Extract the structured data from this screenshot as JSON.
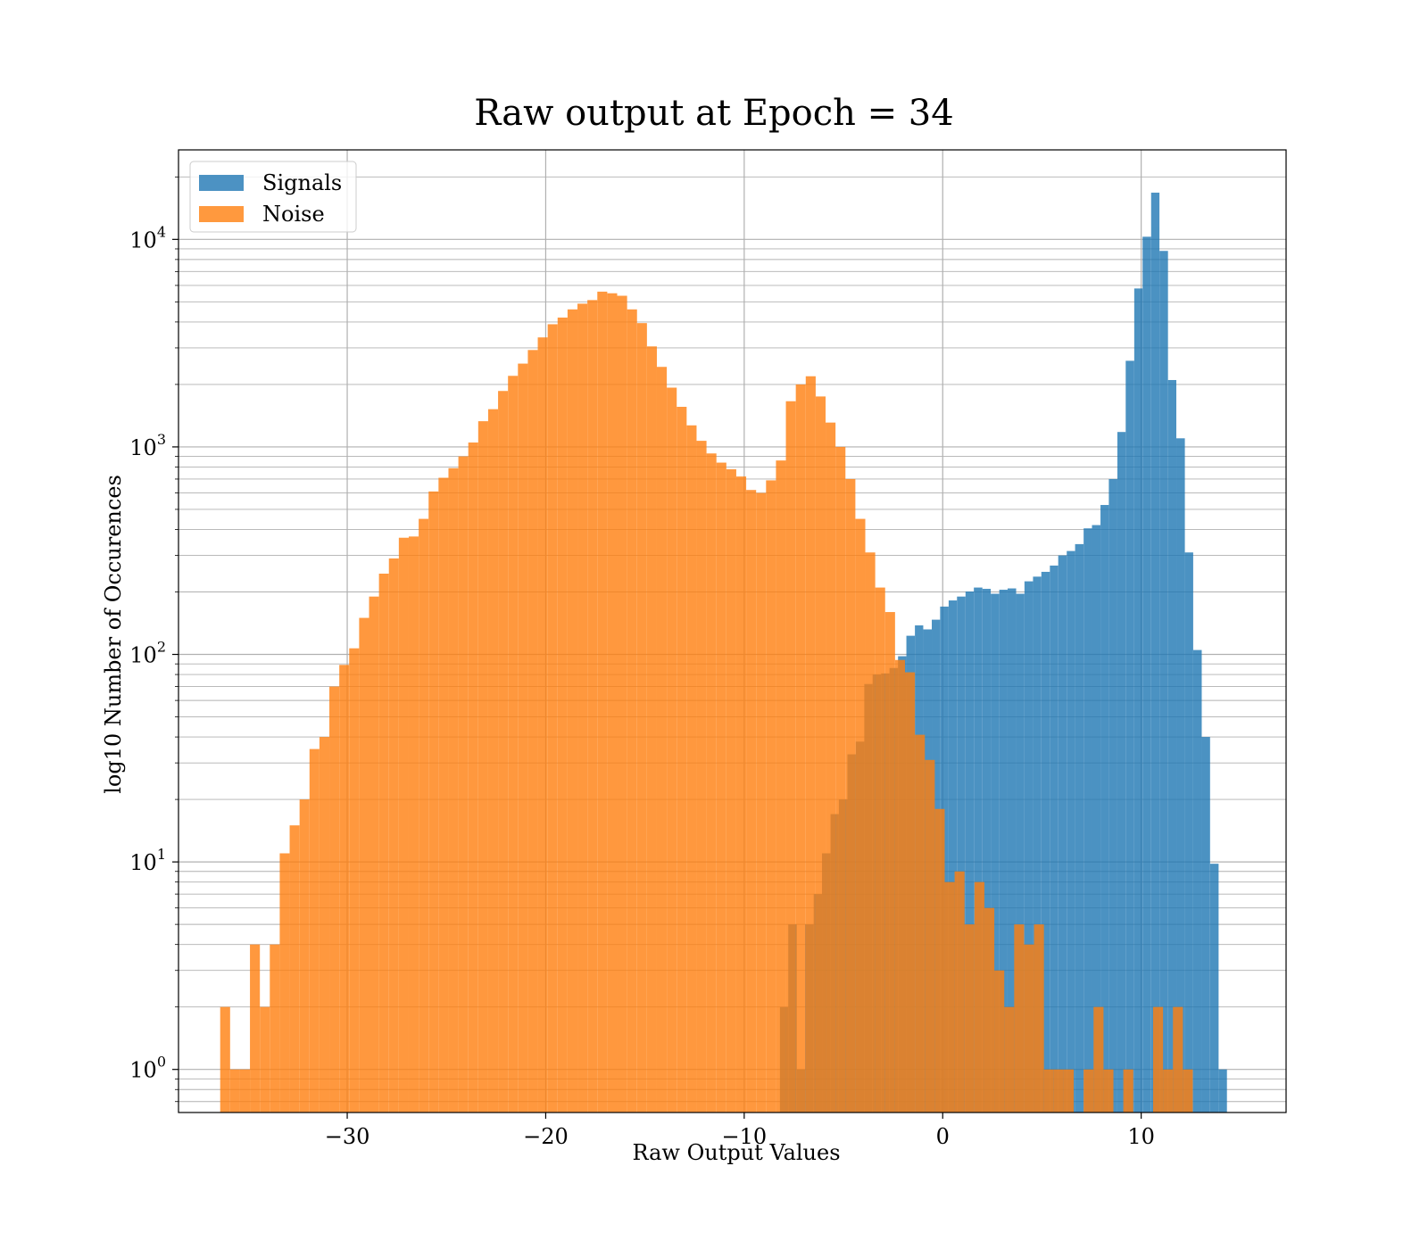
{
  "chart_data": {
    "type": "bar",
    "title": "Raw output at Epoch = 34",
    "xlabel": "Raw Output Values",
    "ylabel": "log10 Number of Occurences",
    "yscale": "log",
    "xlim": [
      -38.5,
      17.3
    ],
    "ylim": [
      0.62,
      27000
    ],
    "xticks": [
      -30,
      -20,
      -10,
      0,
      10
    ],
    "xtick_labels": [
      "−30",
      "−20",
      "−10",
      "0",
      "10"
    ],
    "yticks": [
      1,
      10,
      100,
      1000,
      10000
    ],
    "ytick_labels": [
      {
        "base": "10",
        "exp": "0"
      },
      {
        "base": "10",
        "exp": "1"
      },
      {
        "base": "10",
        "exp": "2"
      },
      {
        "base": "10",
        "exp": "3"
      },
      {
        "base": "10",
        "exp": "4"
      }
    ],
    "grid": true,
    "legend_position": "upper-left",
    "colors": {
      "signals": "#1f77b4",
      "noise": "#ff7f0e",
      "grid": "#b0b0b0"
    },
    "series": [
      {
        "name": "Signals",
        "color": "#1f77b4",
        "alpha": 0.8,
        "bins": [
          [
            -8.2,
            -7.78,
            2
          ],
          [
            -7.78,
            -7.35,
            5
          ],
          [
            -7.35,
            -6.93,
            1
          ],
          [
            -6.93,
            -6.5,
            5
          ],
          [
            -6.5,
            -6.08,
            7
          ],
          [
            -6.08,
            -5.65,
            11
          ],
          [
            -5.65,
            -5.23,
            17
          ],
          [
            -5.23,
            -4.8,
            20
          ],
          [
            -4.8,
            -4.38,
            33
          ],
          [
            -4.38,
            -3.95,
            38
          ],
          [
            -3.95,
            -3.53,
            72
          ],
          [
            -3.53,
            -3.1,
            80
          ],
          [
            -3.1,
            -2.68,
            81
          ],
          [
            -2.68,
            -2.25,
            86
          ],
          [
            -2.25,
            -1.83,
            98
          ],
          [
            -1.83,
            -1.4,
            123
          ],
          [
            -1.4,
            -0.98,
            138
          ],
          [
            -0.98,
            -0.55,
            132
          ],
          [
            -0.55,
            -0.13,
            147
          ],
          [
            -0.13,
            0.3,
            170
          ],
          [
            0.3,
            0.72,
            182
          ],
          [
            0.72,
            1.15,
            190
          ],
          [
            1.15,
            1.57,
            201
          ],
          [
            1.57,
            2.0,
            210
          ],
          [
            2.0,
            2.42,
            207
          ],
          [
            2.42,
            2.85,
            196
          ],
          [
            2.85,
            3.27,
            205
          ],
          [
            3.27,
            3.7,
            208
          ],
          [
            3.7,
            4.12,
            196
          ],
          [
            4.12,
            4.55,
            225
          ],
          [
            4.55,
            4.97,
            237
          ],
          [
            4.97,
            5.4,
            250
          ],
          [
            5.4,
            5.82,
            268
          ],
          [
            5.82,
            6.25,
            300
          ],
          [
            6.25,
            6.67,
            315
          ],
          [
            6.67,
            7.1,
            340
          ],
          [
            7.1,
            7.52,
            405
          ],
          [
            7.52,
            7.95,
            420
          ],
          [
            7.95,
            8.37,
            525
          ],
          [
            8.37,
            8.8,
            700
          ],
          [
            8.8,
            9.22,
            1180
          ],
          [
            9.22,
            9.65,
            2600
          ],
          [
            9.65,
            10.07,
            5800
          ],
          [
            10.07,
            10.5,
            10300
          ],
          [
            10.5,
            10.92,
            16800
          ],
          [
            10.92,
            11.35,
            8800
          ],
          [
            11.35,
            11.77,
            2100
          ],
          [
            11.77,
            12.2,
            1100
          ],
          [
            12.2,
            12.62,
            310
          ],
          [
            12.62,
            13.05,
            105
          ],
          [
            13.05,
            13.47,
            40
          ],
          [
            13.47,
            13.9,
            9.8
          ],
          [
            13.9,
            14.32,
            1
          ]
        ]
      },
      {
        "name": "Noise",
        "color": "#ff7f0e",
        "alpha": 0.8,
        "bins": [
          [
            -36.4,
            -35.9,
            2
          ],
          [
            -35.9,
            -35.4,
            1
          ],
          [
            -35.4,
            -34.9,
            1
          ],
          [
            -34.9,
            -34.4,
            4
          ],
          [
            -34.4,
            -33.9,
            2
          ],
          [
            -33.9,
            -33.4,
            4
          ],
          [
            -33.4,
            -32.9,
            11
          ],
          [
            -32.9,
            -32.4,
            15
          ],
          [
            -32.4,
            -31.9,
            20
          ],
          [
            -31.9,
            -31.4,
            35
          ],
          [
            -31.4,
            -30.9,
            40
          ],
          [
            -30.9,
            -30.4,
            70
          ],
          [
            -30.4,
            -29.9,
            89
          ],
          [
            -29.9,
            -29.4,
            107
          ],
          [
            -29.4,
            -28.9,
            150
          ],
          [
            -28.9,
            -28.4,
            190
          ],
          [
            -28.4,
            -27.9,
            245
          ],
          [
            -27.9,
            -27.4,
            290
          ],
          [
            -27.4,
            -26.9,
            365
          ],
          [
            -26.9,
            -26.4,
            370
          ],
          [
            -26.4,
            -25.9,
            450
          ],
          [
            -25.9,
            -25.4,
            610
          ],
          [
            -25.4,
            -24.9,
            710
          ],
          [
            -24.9,
            -24.4,
            790
          ],
          [
            -24.4,
            -23.9,
            900
          ],
          [
            -23.9,
            -23.4,
            1050
          ],
          [
            -23.4,
            -22.9,
            1330
          ],
          [
            -22.9,
            -22.4,
            1520
          ],
          [
            -22.4,
            -21.9,
            1860
          ],
          [
            -21.9,
            -21.4,
            2200
          ],
          [
            -21.4,
            -20.9,
            2520
          ],
          [
            -20.9,
            -20.4,
            2930
          ],
          [
            -20.4,
            -19.9,
            3370
          ],
          [
            -19.9,
            -19.4,
            3900
          ],
          [
            -19.4,
            -18.9,
            4200
          ],
          [
            -18.9,
            -18.4,
            4600
          ],
          [
            -18.4,
            -17.9,
            4900
          ],
          [
            -17.9,
            -17.4,
            5100
          ],
          [
            -17.4,
            -16.9,
            5600
          ],
          [
            -16.9,
            -16.4,
            5500
          ],
          [
            -16.4,
            -15.9,
            5350
          ],
          [
            -15.9,
            -15.4,
            4600
          ],
          [
            -15.4,
            -14.9,
            3950
          ],
          [
            -14.9,
            -14.4,
            3050
          ],
          [
            -14.4,
            -13.9,
            2430
          ],
          [
            -13.9,
            -13.4,
            1930
          ],
          [
            -13.4,
            -12.9,
            1560
          ],
          [
            -12.9,
            -12.4,
            1270
          ],
          [
            -12.4,
            -11.9,
            1070
          ],
          [
            -11.9,
            -11.4,
            930
          ],
          [
            -11.4,
            -10.9,
            840
          ],
          [
            -10.9,
            -10.4,
            780
          ],
          [
            -10.4,
            -9.9,
            720
          ],
          [
            -9.9,
            -9.4,
            620
          ],
          [
            -9.4,
            -8.9,
            600
          ],
          [
            -8.9,
            -8.4,
            690
          ],
          [
            -8.4,
            -7.9,
            860
          ],
          [
            -7.9,
            -7.4,
            1660
          ],
          [
            -7.4,
            -6.9,
            2000
          ],
          [
            -6.9,
            -6.4,
            2190
          ],
          [
            -6.4,
            -5.9,
            1750
          ],
          [
            -5.9,
            -5.4,
            1310
          ],
          [
            -5.4,
            -4.9,
            1000
          ],
          [
            -4.9,
            -4.4,
            700
          ],
          [
            -4.4,
            -3.9,
            450
          ],
          [
            -3.9,
            -3.4,
            310
          ],
          [
            -3.4,
            -2.9,
            210
          ],
          [
            -2.9,
            -2.4,
            160
          ],
          [
            -2.4,
            -1.9,
            94
          ],
          [
            -1.9,
            -1.4,
            82
          ],
          [
            -1.4,
            -0.9,
            41
          ],
          [
            -0.9,
            -0.4,
            31
          ],
          [
            -0.4,
            0.1,
            18
          ],
          [
            0.1,
            0.6,
            8
          ],
          [
            0.6,
            1.1,
            9
          ],
          [
            1.1,
            1.6,
            5
          ],
          [
            1.6,
            2.1,
            8
          ],
          [
            2.1,
            2.6,
            6
          ],
          [
            2.6,
            3.1,
            3
          ],
          [
            3.1,
            3.6,
            2
          ],
          [
            3.6,
            4.1,
            5
          ],
          [
            4.1,
            4.6,
            4
          ],
          [
            4.6,
            5.1,
            5
          ],
          [
            5.1,
            5.6,
            1
          ],
          [
            5.6,
            6.1,
            1
          ],
          [
            6.1,
            6.6,
            1
          ],
          [
            6.6,
            7.1,
            0
          ],
          [
            7.1,
            7.6,
            1
          ],
          [
            7.6,
            8.1,
            2
          ],
          [
            8.1,
            8.6,
            1
          ],
          [
            8.6,
            9.1,
            0
          ],
          [
            9.1,
            9.6,
            1
          ],
          [
            9.6,
            10.1,
            0
          ],
          [
            10.1,
            10.6,
            0
          ],
          [
            10.6,
            11.1,
            2
          ],
          [
            11.1,
            11.6,
            1
          ],
          [
            11.6,
            12.1,
            2
          ],
          [
            12.1,
            12.6,
            1
          ]
        ]
      }
    ]
  }
}
